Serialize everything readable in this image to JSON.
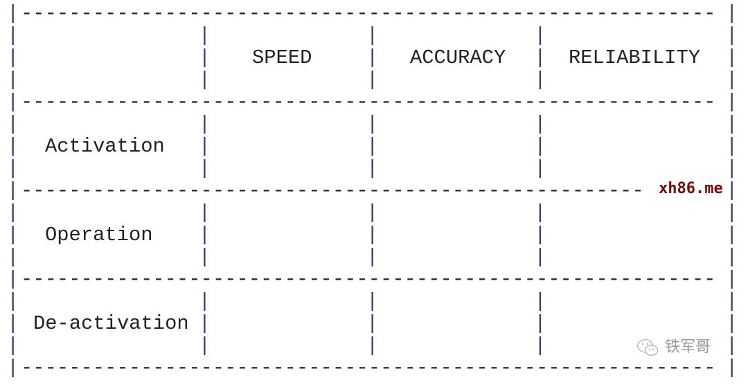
{
  "table": {
    "column_headers": [
      "SPEED",
      "ACCURACY",
      "RELIABILITY"
    ],
    "row_labels": [
      "Activation",
      "Operation",
      "De-activation"
    ]
  },
  "watermarks": {
    "site": "xh86.me",
    "account": "铁军哥",
    "account_icon": "wechat-icon"
  }
}
